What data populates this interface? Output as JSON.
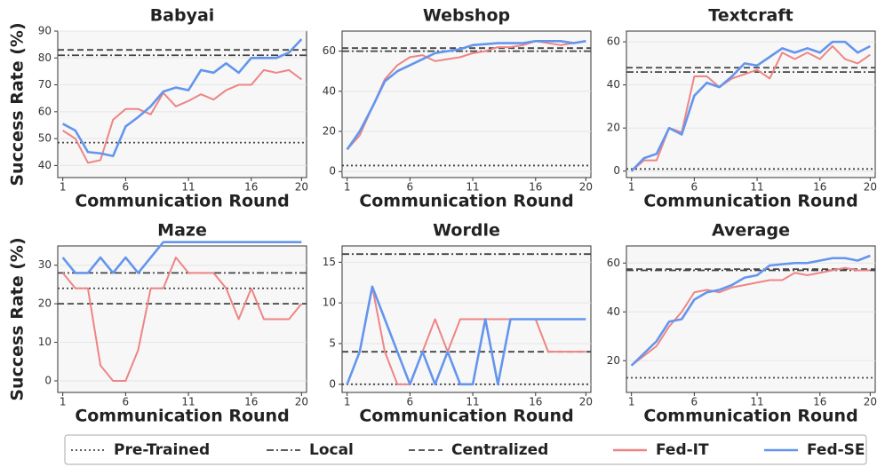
{
  "chart_data": [
    {
      "type": "line",
      "title": "Babyai",
      "xlabel": "Communication Round",
      "ylabel": "Success Rate (%)",
      "x": [
        1,
        2,
        3,
        4,
        5,
        6,
        7,
        8,
        9,
        10,
        11,
        12,
        13,
        14,
        15,
        16,
        17,
        18,
        19,
        20
      ],
      "xlim": [
        0.6,
        20.4
      ],
      "xticks": [
        1,
        6,
        11,
        16,
        20
      ],
      "ylim": [
        35.5,
        90
      ],
      "yticks": [
        40,
        50,
        60,
        70,
        80,
        90
      ],
      "grid": true,
      "reference_lines": [
        {
          "name": "Pre-Trained",
          "value": 48.5,
          "dash": "dotted",
          "color": "#444444"
        },
        {
          "name": "Local",
          "value": 81,
          "dash": "dashdot",
          "color": "#444444"
        },
        {
          "name": "Centralized",
          "value": 83,
          "dash": "dashed",
          "color": "#444444"
        }
      ],
      "series": [
        {
          "name": "Fed-IT",
          "color": "#ee8585",
          "values": [
            53,
            50,
            41,
            42,
            57,
            61,
            61,
            59,
            67,
            62,
            64,
            66.5,
            64.5,
            68,
            70,
            70,
            75.5,
            74.5,
            75.5,
            72
          ]
        },
        {
          "name": "Fed-SE",
          "color": "#6495ed",
          "values": [
            55.5,
            53,
            45,
            44.5,
            43.5,
            54.5,
            58,
            62,
            67.5,
            69,
            68,
            75.5,
            74.5,
            78,
            74.5,
            80,
            80,
            80,
            82,
            87
          ]
        }
      ]
    },
    {
      "type": "line",
      "title": "Webshop",
      "xlabel": "Communication Round",
      "x": [
        1,
        2,
        3,
        4,
        5,
        6,
        7,
        8,
        9,
        10,
        11,
        12,
        13,
        14,
        15,
        16,
        17,
        18,
        19,
        20
      ],
      "xlim": [
        0.6,
        20.4
      ],
      "xticks": [
        1,
        6,
        11,
        16,
        20
      ],
      "ylim": [
        -3,
        70
      ],
      "yticks": [
        0,
        20,
        40,
        60
      ],
      "grid": true,
      "reference_lines": [
        {
          "name": "Pre-Trained",
          "value": 3,
          "dash": "dotted",
          "color": "#444444"
        },
        {
          "name": "Local",
          "value": 60,
          "dash": "dashdot",
          "color": "#444444"
        },
        {
          "name": "Centralized",
          "value": 61.5,
          "dash": "dashed",
          "color": "#444444"
        }
      ],
      "series": [
        {
          "name": "Fed-IT",
          "color": "#ee8585",
          "values": [
            11,
            18,
            32,
            46,
            53,
            57,
            58,
            55,
            56,
            57,
            59,
            60,
            62,
            62,
            63,
            65,
            64,
            63,
            64,
            65
          ]
        },
        {
          "name": "Fed-SE",
          "color": "#6495ed",
          "values": [
            11,
            20,
            32,
            45,
            50,
            53,
            56,
            59,
            60,
            61,
            63,
            63.5,
            64,
            64,
            64,
            65,
            65,
            65,
            64,
            65
          ]
        }
      ]
    },
    {
      "type": "line",
      "title": "Textcraft",
      "xlabel": "Communication Round",
      "x": [
        1,
        2,
        3,
        4,
        5,
        6,
        7,
        8,
        9,
        10,
        11,
        12,
        13,
        14,
        15,
        16,
        17,
        18,
        19,
        20
      ],
      "xlim": [
        0.6,
        20.4
      ],
      "xticks": [
        1,
        6,
        11,
        16,
        20
      ],
      "ylim": [
        -3,
        65
      ],
      "yticks": [
        0,
        20,
        40,
        60
      ],
      "grid": true,
      "reference_lines": [
        {
          "name": "Pre-Trained",
          "value": 1,
          "dash": "dotted",
          "color": "#444444"
        },
        {
          "name": "Local",
          "value": 46,
          "dash": "dashdot",
          "color": "#444444"
        },
        {
          "name": "Centralized",
          "value": 48,
          "dash": "dashed",
          "color": "#444444"
        }
      ],
      "series": [
        {
          "name": "Fed-IT",
          "color": "#ee8585",
          "values": [
            0,
            5,
            5,
            20,
            18,
            44,
            44,
            39,
            43,
            45,
            47,
            43,
            55,
            52,
            55,
            52,
            58,
            52,
            50,
            54
          ]
        },
        {
          "name": "Fed-SE",
          "color": "#6495ed",
          "values": [
            0,
            6,
            8,
            20,
            17,
            35,
            41,
            39,
            44,
            50,
            49,
            53,
            57,
            55,
            57,
            55,
            60,
            60,
            55,
            58
          ]
        }
      ]
    },
    {
      "type": "line",
      "title": "Maze",
      "xlabel": "Communication Round",
      "ylabel": "Success Rate (%)",
      "x": [
        1,
        2,
        3,
        4,
        5,
        6,
        7,
        8,
        9,
        10,
        11,
        12,
        13,
        14,
        15,
        16,
        17,
        18,
        19,
        20
      ],
      "xlim": [
        0.6,
        20.4
      ],
      "xticks": [
        1,
        6,
        11,
        16,
        20
      ],
      "ylim": [
        -3,
        35
      ],
      "yticks": [
        0,
        10,
        20,
        30
      ],
      "grid": true,
      "reference_lines": [
        {
          "name": "Pre-Trained",
          "value": 24,
          "dash": "dotted",
          "color": "#444444"
        },
        {
          "name": "Local",
          "value": 28,
          "dash": "dashdot",
          "color": "#444444"
        },
        {
          "name": "Centralized",
          "value": 20,
          "dash": "dashed",
          "color": "#444444"
        }
      ],
      "series": [
        {
          "name": "Fed-IT",
          "color": "#ee8585",
          "values": [
            28,
            24,
            24,
            4,
            0,
            0,
            8,
            24,
            24,
            32,
            28,
            28,
            28,
            24,
            16,
            24,
            16,
            16,
            16,
            20
          ]
        },
        {
          "name": "Fed-SE",
          "color": "#6495ed",
          "values": [
            32,
            28,
            28,
            32,
            28,
            32,
            28,
            32,
            36,
            36,
            36,
            36,
            36,
            36,
            36,
            36,
            36,
            36,
            36,
            36
          ]
        }
      ]
    },
    {
      "type": "line",
      "title": "Wordle",
      "xlabel": "Communication Round",
      "x": [
        1,
        2,
        3,
        4,
        5,
        6,
        7,
        8,
        9,
        10,
        11,
        12,
        13,
        14,
        15,
        16,
        17,
        18,
        19,
        20
      ],
      "xlim": [
        0.6,
        20.4
      ],
      "xticks": [
        1,
        6,
        11,
        16,
        20
      ],
      "ylim": [
        -1,
        17
      ],
      "yticks": [
        0,
        5,
        10,
        15
      ],
      "grid": true,
      "reference_lines": [
        {
          "name": "Pre-Trained",
          "value": 0,
          "dash": "dotted",
          "color": "#444444"
        },
        {
          "name": "Local",
          "value": 16,
          "dash": "dashdot",
          "color": "#444444"
        },
        {
          "name": "Centralized",
          "value": 4,
          "dash": "dashed",
          "color": "#444444"
        }
      ],
      "series": [
        {
          "name": "Fed-IT",
          "color": "#ee8585",
          "values": [
            0,
            4,
            12,
            4,
            0,
            0,
            4,
            8,
            4,
            8,
            8,
            8,
            8,
            8,
            8,
            8,
            4,
            4,
            4,
            4
          ]
        },
        {
          "name": "Fed-SE",
          "color": "#6495ed",
          "values": [
            0,
            4,
            12,
            8,
            4,
            0,
            4,
            0,
            4,
            0,
            0,
            8,
            0,
            8,
            8,
            8,
            8,
            8,
            8,
            8
          ]
        }
      ]
    },
    {
      "type": "line",
      "title": "Average",
      "xlabel": "Communication Round",
      "x": [
        1,
        2,
        3,
        4,
        5,
        6,
        7,
        8,
        9,
        10,
        11,
        12,
        13,
        14,
        15,
        16,
        17,
        18,
        19,
        20
      ],
      "xlim": [
        0.6,
        20.4
      ],
      "xticks": [
        1,
        6,
        11,
        16,
        20
      ],
      "ylim": [
        7,
        67
      ],
      "yticks": [
        20,
        40,
        60
      ],
      "grid": true,
      "reference_lines": [
        {
          "name": "Pre-Trained",
          "value": 13,
          "dash": "dotted",
          "color": "#444444"
        },
        {
          "name": "Local",
          "value": 57,
          "dash": "dashdot",
          "color": "#444444"
        },
        {
          "name": "Centralized",
          "value": 57.5,
          "dash": "dashed",
          "color": "#444444"
        }
      ],
      "series": [
        {
          "name": "Fed-IT",
          "color": "#ee8585",
          "values": [
            18,
            22,
            26,
            34,
            40,
            48,
            49,
            48,
            50,
            51,
            52,
            53,
            53,
            56,
            55,
            56,
            57,
            58,
            57,
            57
          ]
        },
        {
          "name": "Fed-SE",
          "color": "#6495ed",
          "values": [
            18,
            23,
            28,
            36,
            37,
            45,
            48,
            49,
            51,
            54,
            55,
            59,
            59.5,
            60,
            60,
            61,
            62,
            62,
            61,
            63
          ]
        }
      ]
    }
  ]
}
